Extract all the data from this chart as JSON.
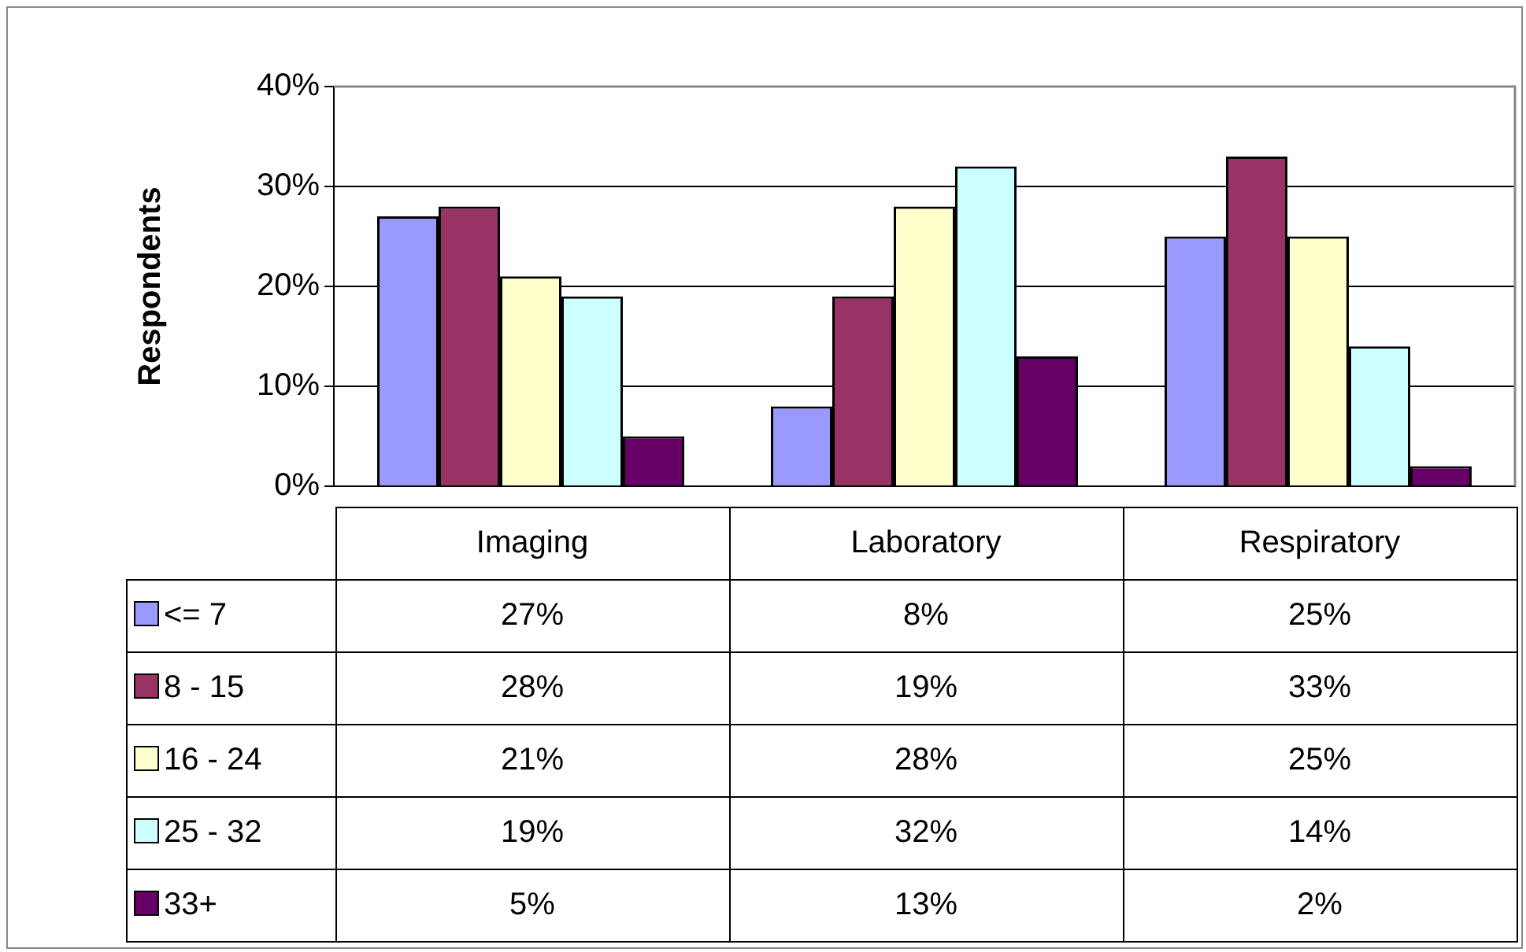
{
  "chart_data": {
    "type": "bar",
    "ylabel": "Respondents",
    "categories": [
      "Imaging",
      "Laboratory",
      "Respiratory"
    ],
    "series": [
      {
        "name": "<= 7",
        "color": "#9999ff",
        "values": [
          27,
          8,
          25
        ],
        "value_labels": [
          "27%",
          "8%",
          "25%"
        ]
      },
      {
        "name": "8 - 15",
        "color": "#993366",
        "values": [
          28,
          19,
          33
        ],
        "value_labels": [
          "28%",
          "19%",
          "33%"
        ]
      },
      {
        "name": "16 - 24",
        "color": "#ffffcc",
        "values": [
          21,
          28,
          25
        ],
        "value_labels": [
          "21%",
          "28%",
          "25%"
        ]
      },
      {
        "name": "25 - 32",
        "color": "#ccffff",
        "values": [
          19,
          32,
          14
        ],
        "value_labels": [
          "19%",
          "32%",
          "14%"
        ]
      },
      {
        "name": "33+",
        "color": "#660066",
        "values": [
          5,
          13,
          2
        ],
        "value_labels": [
          "5%",
          "13%",
          "2%"
        ]
      }
    ],
    "ylim": [
      0,
      40
    ],
    "yticks": [
      {
        "value": 0,
        "label": "0%"
      },
      {
        "value": 10,
        "label": "10%"
      },
      {
        "value": 20,
        "label": "20%"
      },
      {
        "value": 30,
        "label": "30%"
      },
      {
        "value": 40,
        "label": "40%"
      }
    ],
    "grid": "y",
    "legend": "bottom"
  }
}
